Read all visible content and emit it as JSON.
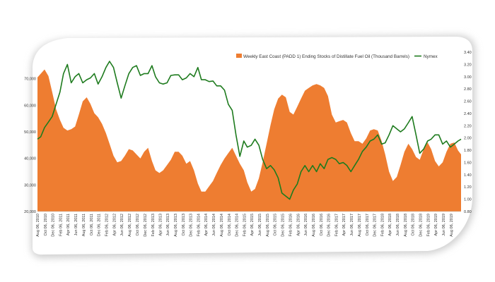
{
  "chart_data": {
    "type": "area+line",
    "colors": {
      "area": "#EE7D31",
      "line": "#1E7B1E",
      "frame_shadow": "#cfcfcf"
    },
    "legend": {
      "placement": "top-right",
      "area_label": "Weekly East Coast (PADD 1) Ending Stocks of Distillate Fuel Oil (Thousand Barrels)",
      "line_label": "Nymex"
    },
    "y_left": {
      "ylim": [
        20000,
        80000
      ],
      "ticks": [
        "20,000",
        "30,000",
        "40,000",
        "50,000",
        "60,000",
        "70,000"
      ],
      "tick_values": [
        20000,
        30000,
        40000,
        50000,
        60000,
        70000
      ]
    },
    "y_right": {
      "ylim": [
        0.8,
        3.4
      ],
      "ticks": [
        "0.80",
        "1.00",
        "1.20",
        "1.40",
        "1.60",
        "1.80",
        "2.00",
        "2.20",
        "2.40",
        "2.60",
        "2.80",
        "3.00",
        "3.20",
        "3.40"
      ],
      "tick_values": [
        0.8,
        1.0,
        1.2,
        1.4,
        1.6,
        1.8,
        2.0,
        2.2,
        2.4,
        2.6,
        2.8,
        3.0,
        3.2,
        3.4
      ]
    },
    "x_axis": {
      "start": "2010-08-06",
      "end": "2019-10-25",
      "tick_labels": [
        "Aug 06, 2010",
        "Oct 06, 2010",
        "Dec 06, 2010",
        "Feb 06, 2011",
        "Apr 06, 2011",
        "Jun 06, 2011",
        "Aug 06, 2011",
        "Oct 06, 2011",
        "Dec 06, 2011",
        "Feb 06, 2012",
        "Apr 06, 2012",
        "Jun 06, 2012",
        "Aug 06, 2012",
        "Oct 06, 2012",
        "Dec 06, 2012",
        "Feb 06, 2013",
        "Apr 06, 2013",
        "Jun 06, 2013",
        "Aug 06, 2013",
        "Oct 06, 2013",
        "Dec 06, 2013",
        "Feb 06, 2014",
        "Apr 06, 2014",
        "Jun 06, 2014",
        "Aug 06, 2014",
        "Oct 06, 2014",
        "Dec 06, 2014",
        "Feb 06, 2015",
        "Apr 06, 2015",
        "Jun 06, 2015",
        "Aug 06, 2015",
        "Oct 06, 2015",
        "Dec 06, 2015",
        "Feb 06, 2016",
        "Apr 06, 2016",
        "Jun 06, 2016",
        "Aug 06, 2016",
        "Oct 06, 2016",
        "Dec 06, 2016",
        "Feb 06, 2017",
        "Apr 06, 2017",
        "Jun 06, 2017",
        "Aug 06, 2017",
        "Oct 06, 2017",
        "Dec 06, 2017",
        "Feb 06, 2018",
        "Apr 06, 2018",
        "Jun 06, 2018",
        "Aug 06, 2018",
        "Oct 06, 2018",
        "Dec 06, 2018",
        "Feb 06, 2019",
        "Apr 06, 2019",
        "Jun 06, 2019",
        "Aug 06, 2019"
      ]
    },
    "series": [
      {
        "name": "Weekly East Coast (PADD 1) Ending Stocks of Distillate Fuel Oil (Thousand Barrels)",
        "type": "area",
        "axis": "left",
        "points": [
          [
            "2010-08-06",
            70500
          ],
          [
            "2010-09-03",
            72000
          ],
          [
            "2010-10-01",
            73500
          ],
          [
            "2010-11-01",
            71000
          ],
          [
            "2010-12-01",
            65000
          ],
          [
            "2011-01-01",
            58500
          ],
          [
            "2011-02-01",
            54500
          ],
          [
            "2011-03-01",
            51500
          ],
          [
            "2011-04-01",
            50500
          ],
          [
            "2011-05-01",
            51000
          ],
          [
            "2011-06-01",
            52000
          ],
          [
            "2011-07-01",
            56500
          ],
          [
            "2011-08-01",
            61500
          ],
          [
            "2011-09-01",
            63000
          ],
          [
            "2011-10-01",
            60500
          ],
          [
            "2011-11-01",
            57000
          ],
          [
            "2011-12-01",
            55500
          ],
          [
            "2012-01-01",
            53000
          ],
          [
            "2012-02-01",
            49500
          ],
          [
            "2012-03-01",
            45500
          ],
          [
            "2012-04-01",
            41000
          ],
          [
            "2012-05-01",
            38500
          ],
          [
            "2012-06-01",
            39000
          ],
          [
            "2012-07-01",
            41000
          ],
          [
            "2012-08-01",
            43500
          ],
          [
            "2012-09-01",
            43000
          ],
          [
            "2012-10-01",
            41500
          ],
          [
            "2012-11-01",
            40000
          ],
          [
            "2012-12-01",
            42500
          ],
          [
            "2013-01-01",
            44000
          ],
          [
            "2013-02-01",
            39000
          ],
          [
            "2013-03-01",
            35500
          ],
          [
            "2013-04-01",
            34500
          ],
          [
            "2013-05-01",
            35500
          ],
          [
            "2013-06-01",
            37500
          ],
          [
            "2013-07-01",
            39500
          ],
          [
            "2013-08-01",
            42500
          ],
          [
            "2013-09-01",
            42500
          ],
          [
            "2013-10-01",
            41000
          ],
          [
            "2013-11-01",
            38000
          ],
          [
            "2013-12-01",
            39000
          ],
          [
            "2014-01-01",
            35500
          ],
          [
            "2014-02-01",
            30500
          ],
          [
            "2014-03-01",
            27500
          ],
          [
            "2014-04-01",
            27500
          ],
          [
            "2014-05-01",
            29500
          ],
          [
            "2014-06-01",
            31500
          ],
          [
            "2014-07-01",
            34500
          ],
          [
            "2014-08-01",
            37500
          ],
          [
            "2014-09-01",
            40000
          ],
          [
            "2014-10-01",
            42000
          ],
          [
            "2014-11-01",
            44000
          ],
          [
            "2014-12-01",
            41000
          ],
          [
            "2015-01-01",
            38000
          ],
          [
            "2015-02-01",
            35500
          ],
          [
            "2015-03-01",
            31000
          ],
          [
            "2015-04-01",
            27500
          ],
          [
            "2015-05-01",
            28500
          ],
          [
            "2015-06-01",
            32500
          ],
          [
            "2015-07-01",
            38500
          ],
          [
            "2015-08-01",
            45500
          ],
          [
            "2015-09-01",
            52500
          ],
          [
            "2015-10-01",
            58500
          ],
          [
            "2015-11-01",
            62500
          ],
          [
            "2015-12-01",
            64000
          ],
          [
            "2016-01-01",
            63000
          ],
          [
            "2016-02-01",
            57500
          ],
          [
            "2016-03-01",
            56500
          ],
          [
            "2016-04-01",
            59500
          ],
          [
            "2016-05-01",
            62500
          ],
          [
            "2016-06-01",
            65500
          ],
          [
            "2016-07-01",
            66500
          ],
          [
            "2016-08-01",
            67500
          ],
          [
            "2016-09-01",
            68000
          ],
          [
            "2016-10-01",
            67500
          ],
          [
            "2016-11-01",
            66500
          ],
          [
            "2016-12-01",
            63500
          ],
          [
            "2017-01-01",
            56500
          ],
          [
            "2017-02-01",
            53500
          ],
          [
            "2017-03-01",
            54000
          ],
          [
            "2017-04-01",
            54500
          ],
          [
            "2017-05-01",
            53500
          ],
          [
            "2017-06-01",
            49500
          ],
          [
            "2017-07-01",
            46500
          ],
          [
            "2017-08-01",
            46500
          ],
          [
            "2017-09-01",
            45500
          ],
          [
            "2017-10-01",
            47500
          ],
          [
            "2017-11-01",
            50500
          ],
          [
            "2017-12-01",
            51000
          ],
          [
            "2018-01-01",
            50500
          ],
          [
            "2018-02-01",
            46500
          ],
          [
            "2018-03-01",
            41500
          ],
          [
            "2018-04-01",
            35000
          ],
          [
            "2018-05-01",
            31500
          ],
          [
            "2018-06-01",
            33000
          ],
          [
            "2018-07-01",
            37500
          ],
          [
            "2018-08-01",
            42500
          ],
          [
            "2018-09-01",
            45500
          ],
          [
            "2018-10-01",
            43500
          ],
          [
            "2018-11-01",
            40500
          ],
          [
            "2018-12-01",
            39500
          ],
          [
            "2019-01-01",
            43500
          ],
          [
            "2019-02-01",
            46000
          ],
          [
            "2019-03-01",
            43500
          ],
          [
            "2019-04-01",
            39000
          ],
          [
            "2019-05-01",
            37000
          ],
          [
            "2019-06-01",
            38500
          ],
          [
            "2019-07-01",
            42500
          ],
          [
            "2019-08-01",
            45500
          ],
          [
            "2019-09-01",
            46000
          ],
          [
            "2019-10-01",
            43000
          ],
          [
            "2019-10-25",
            41500
          ]
        ]
      },
      {
        "name": "Nymex",
        "type": "line",
        "axis": "right",
        "points": [
          [
            "2010-08-06",
            1.98
          ],
          [
            "2010-09-01",
            2.02
          ],
          [
            "2010-10-01",
            2.17
          ],
          [
            "2010-11-01",
            2.26
          ],
          [
            "2010-12-01",
            2.35
          ],
          [
            "2011-01-01",
            2.55
          ],
          [
            "2011-02-01",
            2.75
          ],
          [
            "2011-03-01",
            3.05
          ],
          [
            "2011-04-01",
            3.2
          ],
          [
            "2011-05-01",
            2.9
          ],
          [
            "2011-06-01",
            3.0
          ],
          [
            "2011-07-01",
            3.05
          ],
          [
            "2011-08-01",
            2.9
          ],
          [
            "2011-09-01",
            2.95
          ],
          [
            "2011-10-01",
            2.98
          ],
          [
            "2011-11-01",
            3.05
          ],
          [
            "2011-12-01",
            2.88
          ],
          [
            "2012-01-01",
            3.0
          ],
          [
            "2012-02-01",
            3.15
          ],
          [
            "2012-03-01",
            3.25
          ],
          [
            "2012-04-01",
            3.15
          ],
          [
            "2012-05-01",
            2.9
          ],
          [
            "2012-06-01",
            2.65
          ],
          [
            "2012-07-01",
            2.85
          ],
          [
            "2012-08-01",
            3.05
          ],
          [
            "2012-09-01",
            3.15
          ],
          [
            "2012-10-01",
            3.18
          ],
          [
            "2012-11-01",
            3.02
          ],
          [
            "2012-12-01",
            3.05
          ],
          [
            "2013-01-01",
            3.05
          ],
          [
            "2013-02-01",
            3.18
          ],
          [
            "2013-03-01",
            3.0
          ],
          [
            "2013-04-01",
            2.9
          ],
          [
            "2013-05-01",
            2.88
          ],
          [
            "2013-06-01",
            2.9
          ],
          [
            "2013-07-01",
            3.02
          ],
          [
            "2013-08-01",
            3.03
          ],
          [
            "2013-09-01",
            3.03
          ],
          [
            "2013-10-01",
            2.95
          ],
          [
            "2013-11-01",
            2.98
          ],
          [
            "2013-12-01",
            3.05
          ],
          [
            "2014-01-01",
            3.0
          ],
          [
            "2014-02-01",
            3.15
          ],
          [
            "2014-03-01",
            2.95
          ],
          [
            "2014-04-01",
            2.95
          ],
          [
            "2014-05-01",
            2.92
          ],
          [
            "2014-06-01",
            2.93
          ],
          [
            "2014-07-01",
            2.85
          ],
          [
            "2014-08-01",
            2.85
          ],
          [
            "2014-09-01",
            2.78
          ],
          [
            "2014-10-01",
            2.55
          ],
          [
            "2014-11-01",
            2.45
          ],
          [
            "2014-12-01",
            2.05
          ],
          [
            "2015-01-01",
            1.7
          ],
          [
            "2015-02-01",
            1.95
          ],
          [
            "2015-03-01",
            1.85
          ],
          [
            "2015-04-01",
            1.88
          ],
          [
            "2015-05-01",
            1.98
          ],
          [
            "2015-06-01",
            1.88
          ],
          [
            "2015-07-01",
            1.65
          ],
          [
            "2015-08-01",
            1.5
          ],
          [
            "2015-09-01",
            1.55
          ],
          [
            "2015-10-01",
            1.48
          ],
          [
            "2015-11-01",
            1.35
          ],
          [
            "2015-12-01",
            1.1
          ],
          [
            "2016-01-01",
            1.05
          ],
          [
            "2016-02-01",
            1.0
          ],
          [
            "2016-03-01",
            1.15
          ],
          [
            "2016-04-01",
            1.25
          ],
          [
            "2016-05-01",
            1.45
          ],
          [
            "2016-06-01",
            1.55
          ],
          [
            "2016-07-01",
            1.45
          ],
          [
            "2016-08-01",
            1.55
          ],
          [
            "2016-09-01",
            1.45
          ],
          [
            "2016-10-01",
            1.58
          ],
          [
            "2016-11-01",
            1.5
          ],
          [
            "2016-12-01",
            1.65
          ],
          [
            "2017-01-01",
            1.68
          ],
          [
            "2017-02-01",
            1.65
          ],
          [
            "2017-03-01",
            1.58
          ],
          [
            "2017-04-01",
            1.6
          ],
          [
            "2017-05-01",
            1.55
          ],
          [
            "2017-06-01",
            1.45
          ],
          [
            "2017-07-01",
            1.55
          ],
          [
            "2017-08-01",
            1.65
          ],
          [
            "2017-09-01",
            1.78
          ],
          [
            "2017-10-01",
            1.85
          ],
          [
            "2017-11-01",
            1.95
          ],
          [
            "2017-12-01",
            1.98
          ],
          [
            "2018-01-01",
            2.05
          ],
          [
            "2018-02-01",
            1.9
          ],
          [
            "2018-03-01",
            1.92
          ],
          [
            "2018-04-01",
            2.05
          ],
          [
            "2018-05-01",
            2.2
          ],
          [
            "2018-06-01",
            2.15
          ],
          [
            "2018-07-01",
            2.1
          ],
          [
            "2018-08-01",
            2.15
          ],
          [
            "2018-09-01",
            2.25
          ],
          [
            "2018-10-01",
            2.35
          ],
          [
            "2018-11-01",
            2.05
          ],
          [
            "2018-12-01",
            1.75
          ],
          [
            "2019-01-01",
            1.82
          ],
          [
            "2019-02-01",
            1.95
          ],
          [
            "2019-03-01",
            1.98
          ],
          [
            "2019-04-01",
            2.05
          ],
          [
            "2019-05-01",
            2.05
          ],
          [
            "2019-06-01",
            1.9
          ],
          [
            "2019-07-01",
            1.95
          ],
          [
            "2019-08-01",
            1.85
          ],
          [
            "2019-09-01",
            1.9
          ],
          [
            "2019-10-01",
            1.95
          ],
          [
            "2019-10-25",
            1.98
          ]
        ]
      }
    ]
  }
}
